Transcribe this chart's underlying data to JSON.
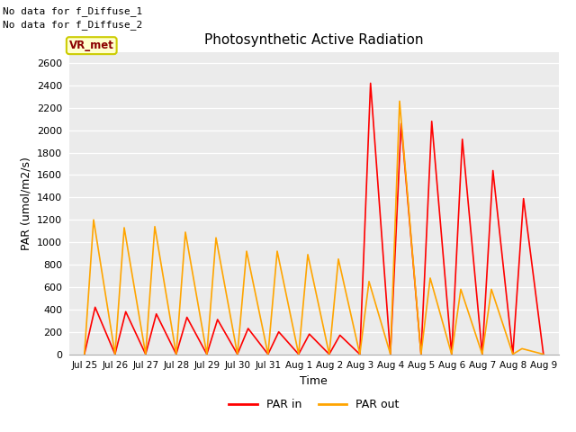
{
  "title": "Photosynthetic Active Radiation",
  "ylabel": "PAR (umol/m2/s)",
  "xlabel": "Time",
  "annotation_lines": [
    "No data for f_Diffuse_1",
    "No data for f_Diffuse_2"
  ],
  "vr_met_label": "VR_met",
  "legend_labels": [
    "PAR in",
    "PAR out"
  ],
  "par_in_color": "#ff0000",
  "par_out_color": "#ffa500",
  "fig_bg_color": "#ffffff",
  "plot_bg_color": "#ebebeb",
  "ylim": [
    0,
    2700
  ],
  "yticks": [
    0,
    200,
    400,
    600,
    800,
    1000,
    1200,
    1400,
    1600,
    1800,
    2000,
    2200,
    2400,
    2600
  ],
  "x_labels": [
    "Jul 25",
    "Jul 26",
    "Jul 27",
    "Jul 28",
    "Jul 29",
    "Jul 30",
    "Jul 31",
    "Aug 1",
    "Aug 2",
    "Aug 3",
    "Aug 4",
    "Aug 5",
    "Aug 6",
    "Aug 7",
    "Aug 8",
    "Aug 9"
  ],
  "par_in_x": [
    0,
    0.35,
    1,
    1.35,
    2,
    2.35,
    3,
    3.35,
    4,
    4.35,
    5,
    5.35,
    6,
    6.35,
    7,
    7.35,
    8,
    8.35,
    9,
    9.35,
    10,
    10.35,
    11,
    11.35,
    12,
    12.35,
    13,
    13.35,
    14,
    14.35,
    15
  ],
  "par_in_y": [
    0,
    420,
    0,
    380,
    0,
    360,
    0,
    330,
    0,
    310,
    0,
    230,
    0,
    200,
    0,
    180,
    0,
    170,
    0,
    2420,
    0,
    2060,
    0,
    2080,
    0,
    1920,
    0,
    1640,
    0,
    1390,
    0
  ],
  "par_out_x": [
    0,
    0.3,
    1,
    1.3,
    2,
    2.3,
    3,
    3.3,
    4,
    4.3,
    5,
    5.3,
    6,
    6.3,
    7,
    7.3,
    8,
    8.3,
    9,
    9.3,
    10,
    10.3,
    11,
    11.3,
    12,
    12.3,
    13,
    13.3,
    14,
    14.3,
    15
  ],
  "par_out_y": [
    0,
    1200,
    0,
    1130,
    0,
    1140,
    0,
    1090,
    0,
    1040,
    0,
    920,
    0,
    920,
    0,
    890,
    0,
    850,
    0,
    650,
    0,
    2260,
    0,
    680,
    0,
    580,
    0,
    580,
    0,
    50,
    0
  ]
}
